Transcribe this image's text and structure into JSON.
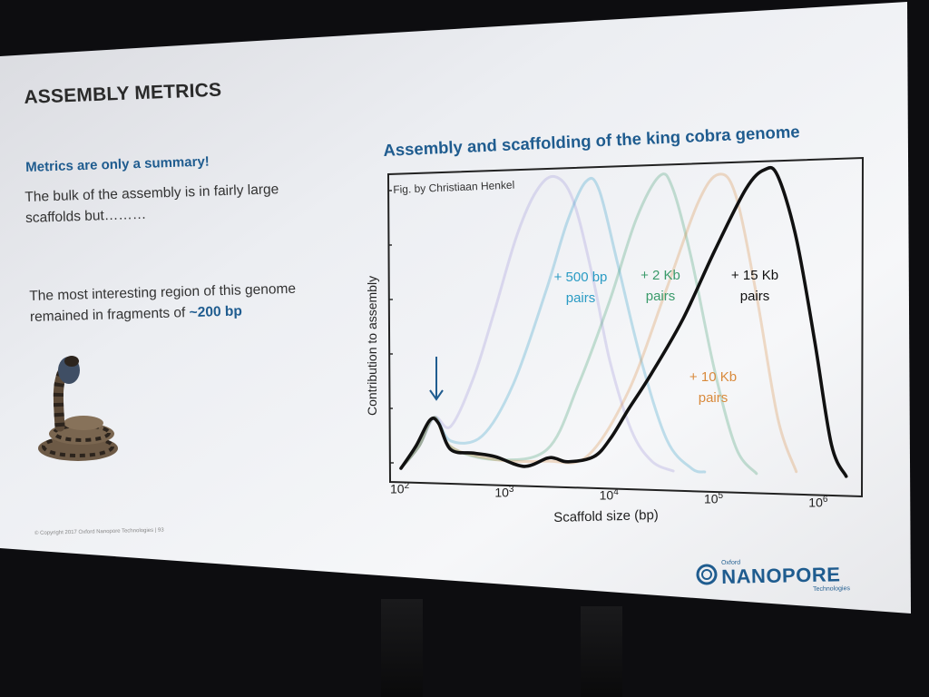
{
  "slide": {
    "title": "ASSEMBLY METRICS",
    "subhead": "Metrics are only a summary!",
    "body1": "The bulk of the assembly is in fairly large scaffolds but………",
    "body2_prefix": "The most interesting region of this genome remained in fragments of ",
    "body2_highlight": "~200 bp",
    "copyright": "© Copyright 2017 Oxford Nanopore Technologies  |  93",
    "logo_top": "Oxford",
    "logo_main": "NANOPORE",
    "logo_bottom": "Technologies"
  },
  "icons": [
    "cobra-illustration",
    "arrow-down-icon",
    "nanopore-logo-icon"
  ],
  "colors": {
    "brand_blue": "#1f5c8f",
    "curve_500bp": "#2a9bc4",
    "curve_2kb": "#3a9a6a",
    "curve_10kb": "#d98a3c",
    "curve_15kb": "#111111",
    "curve_base": "#9b8fd6"
  },
  "chart_data": {
    "type": "line",
    "title": "Assembly and scaffolding of the king cobra genome",
    "credit": "Fig. by Christiaan Henkel",
    "xlabel": "Scaffold size (bp)",
    "ylabel": "Contribution to assembly",
    "xscale": "log",
    "xlim": [
      100,
      2000000
    ],
    "ylim": [
      0,
      1
    ],
    "xticks": [
      {
        "base": "10",
        "exp": "2"
      },
      {
        "base": "10",
        "exp": "3"
      },
      {
        "base": "10",
        "exp": "4"
      },
      {
        "base": "10",
        "exp": "5"
      },
      {
        "base": "10",
        "exp": "6"
      }
    ],
    "grid": false,
    "annotation": "arrow at ~200 bp",
    "series": [
      {
        "color_key": "curve_base",
        "x": [
          100,
          150,
          210,
          300,
          500,
          800,
          1300,
          2000,
          3000,
          4500,
          7000,
          10000,
          16000,
          25000,
          40000
        ],
        "y": [
          0.0,
          0.08,
          0.18,
          0.15,
          0.32,
          0.55,
          0.8,
          0.95,
          1.0,
          0.92,
          0.65,
          0.38,
          0.15,
          0.05,
          0.02
        ]
      },
      {
        "label_lines": [
          "+ 500 bp",
          "pairs"
        ],
        "color_key": "curve_500bp",
        "x": [
          100,
          150,
          210,
          300,
          600,
          1200,
          2500,
          4000,
          6000,
          8000,
          12000,
          20000,
          35000,
          60000,
          80000
        ],
        "y": [
          0.0,
          0.08,
          0.18,
          0.1,
          0.12,
          0.3,
          0.62,
          0.85,
          0.98,
          0.95,
          0.7,
          0.38,
          0.12,
          0.03,
          0.02
        ]
      },
      {
        "label_lines": [
          "+ 2 Kb",
          "pairs"
        ],
        "color_key": "curve_2kb",
        "x": [
          100,
          150,
          210,
          300,
          800,
          2500,
          5000,
          10000,
          18000,
          30000,
          40000,
          60000,
          100000,
          160000,
          250000
        ],
        "y": [
          0.0,
          0.08,
          0.18,
          0.08,
          0.04,
          0.08,
          0.3,
          0.58,
          0.85,
          0.99,
          0.95,
          0.72,
          0.35,
          0.1,
          0.02
        ]
      },
      {
        "label_lines": [
          "+ 10 Kb",
          "pairs"
        ],
        "color_key": "curve_10kb",
        "x": [
          100,
          150,
          210,
          300,
          800,
          2500,
          6000,
          15000,
          35000,
          70000,
          110000,
          160000,
          250000,
          400000,
          600000
        ],
        "y": [
          0.0,
          0.08,
          0.18,
          0.08,
          0.04,
          0.04,
          0.06,
          0.28,
          0.62,
          0.9,
          0.99,
          0.92,
          0.6,
          0.2,
          0.03
        ]
      },
      {
        "label_lines": [
          "+ 15 Kb",
          "pairs"
        ],
        "color_key": "curve_15kb",
        "x": [
          100,
          140,
          190,
          230,
          300,
          500,
          800,
          1500,
          2500,
          3000,
          4000,
          7000,
          10000,
          15000,
          25000,
          50000,
          100000,
          200000,
          300000,
          400000,
          600000,
          900000,
          1300000,
          1800000
        ],
        "y": [
          0.0,
          0.08,
          0.17,
          0.16,
          0.07,
          0.06,
          0.05,
          0.02,
          0.05,
          0.05,
          0.04,
          0.06,
          0.12,
          0.22,
          0.34,
          0.52,
          0.74,
          0.94,
          1.0,
          0.98,
          0.78,
          0.45,
          0.12,
          0.02
        ]
      }
    ]
  }
}
